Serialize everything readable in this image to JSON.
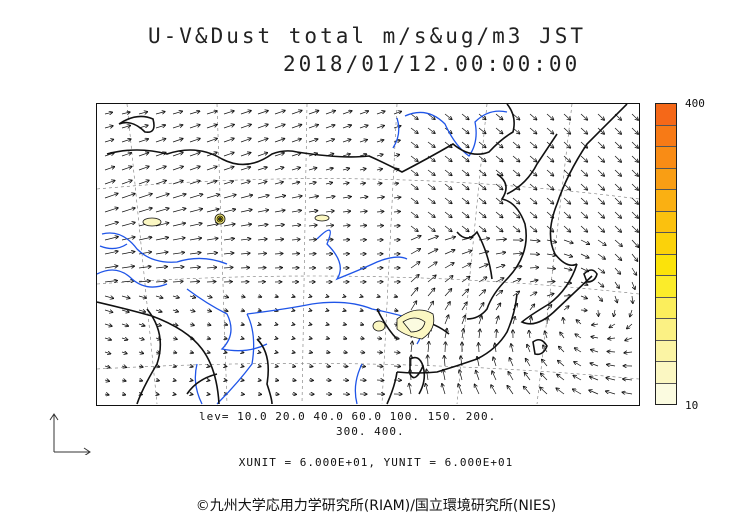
{
  "title": {
    "line1": "U-V&Dust total m/s&ug/m3 JST",
    "line2": "2018/01/12.00:00:00"
  },
  "colorbar": {
    "max_label": "400",
    "min_label": "10",
    "colors": [
      "#fbfbe0",
      "#fbf7c2",
      "#fbf4a4",
      "#fbf184",
      "#fbee5c",
      "#fbec2a",
      "#fbe30a",
      "#fbd20a",
      "#fbc10e",
      "#fab012",
      "#f99e14",
      "#f98c15",
      "#f77a16",
      "#f56818"
    ]
  },
  "contour_levels": {
    "line1": "lev= 10.0 20.0 40.0 60.0 100. 150. 200.",
    "line2": "300. 400."
  },
  "units": "XUNIT = 6.000E+01, YUNIT = 6.000E+01",
  "copyright": "©九州大学応用力学研究所(RIAM)/国立環境研究所(NIES)"
}
